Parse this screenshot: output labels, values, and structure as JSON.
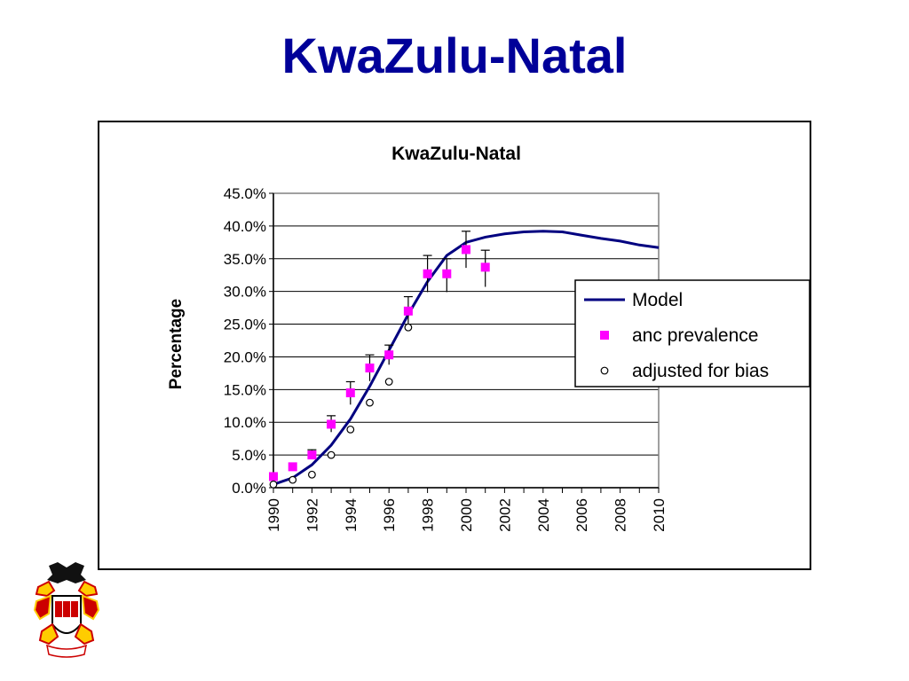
{
  "slide": {
    "title": "KwaZulu-Natal"
  },
  "chart_data": {
    "type": "line",
    "title": "KwaZulu-Natal",
    "xlabel": "",
    "ylabel": "Percentage",
    "xlim": [
      1990,
      2010
    ],
    "ylim": [
      0,
      45
    ],
    "x_ticks": [
      "1990",
      "1992",
      "1994",
      "1996",
      "1998",
      "2000",
      "2002",
      "2004",
      "2006",
      "2008",
      "2010"
    ],
    "y_ticks": [
      "0.0%",
      "5.0%",
      "10.0%",
      "15.0%",
      "20.0%",
      "25.0%",
      "30.0%",
      "35.0%",
      "40.0%",
      "45.0%"
    ],
    "grid": "horizontal",
    "legend_position": "right",
    "series": [
      {
        "name": "Model",
        "kind": "line",
        "color": "#000080",
        "x": [
          1990,
          1991,
          1992,
          1993,
          1994,
          1995,
          1996,
          1997,
          1998,
          1999,
          2000,
          2001,
          2002,
          2003,
          2004,
          2005,
          2006,
          2007,
          2008,
          2009,
          2010
        ],
        "y": [
          0.5,
          1.5,
          3.5,
          6.5,
          10.5,
          15.5,
          21,
          26.5,
          31.5,
          35.5,
          37.5,
          38.3,
          38.8,
          39.1,
          39.2,
          39.1,
          38.6,
          38.1,
          37.7,
          37.1,
          36.7
        ]
      },
      {
        "name": "anc prevalence",
        "kind": "marker-square",
        "color": "#ff00ff",
        "x": [
          1990,
          1991,
          1992,
          1993,
          1994,
          1995,
          1996,
          1997,
          1998,
          1999,
          2000,
          2001
        ],
        "y": [
          1.7,
          3.2,
          5.0,
          9.7,
          14.5,
          18.3,
          20.3,
          27.0,
          32.7,
          32.7,
          36.4,
          33.7
        ],
        "err_low": [
          null,
          null,
          null,
          1.2,
          1.8,
          2.0,
          1.5,
          2.2,
          2.8,
          2.8,
          2.8,
          3.0
        ],
        "err_high": [
          null,
          null,
          0.8,
          1.3,
          1.7,
          2.0,
          1.5,
          2.2,
          2.8,
          2.3,
          2.8,
          2.6
        ]
      },
      {
        "name": "adjusted for bias",
        "kind": "marker-circle",
        "color": "#000000",
        "x": [
          1990,
          1991,
          1992,
          1993,
          1994,
          1995,
          1996,
          1997
        ],
        "y": [
          0.5,
          1.2,
          2.0,
          5.0,
          8.9,
          13.0,
          16.2,
          24.5
        ]
      }
    ]
  }
}
